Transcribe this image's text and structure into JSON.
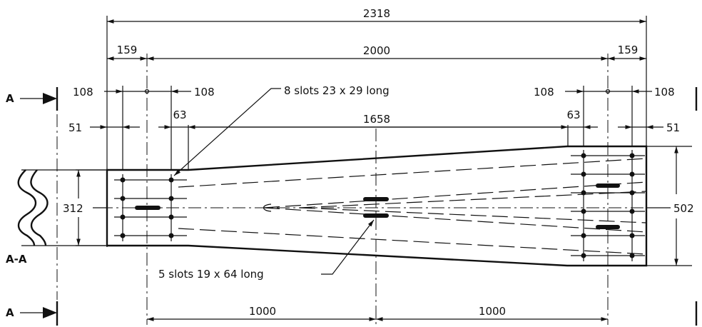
{
  "dimensions": {
    "overall": "2318",
    "center_span": "2000",
    "left_end": "159",
    "right_end": "159",
    "hole_left_a": "108",
    "hole_left_b": "108",
    "hole_right_a": "108",
    "hole_right_b": "108",
    "edge_left": "51",
    "edge_right": "51",
    "offset_left": "63",
    "offset_right": "63",
    "taper_length": "1658",
    "left_height": "312",
    "right_height": "502",
    "bottom_left": "1000",
    "bottom_right": "1000"
  },
  "callouts": {
    "slots_small": "8 slots 23 x 29 long",
    "slots_large": "5 slots 19 x 64 long"
  },
  "section": {
    "marker_top": "A",
    "marker_bottom": "A",
    "section_label": "A-A"
  }
}
